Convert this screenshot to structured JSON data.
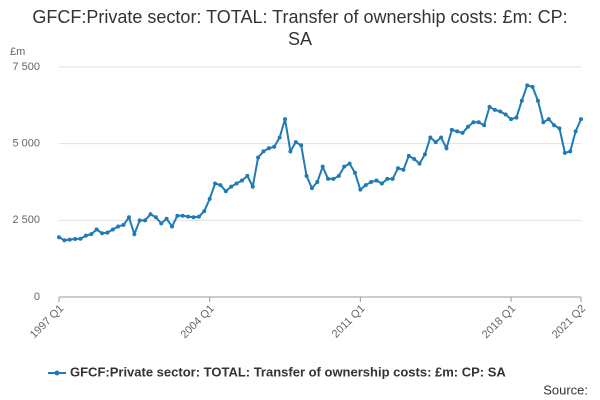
{
  "chart_data": {
    "type": "line",
    "title": "GFCF:Private sector: TOTAL: Transfer of ownership costs: £m: CP: SA",
    "y_label": "£m",
    "source": "Source:",
    "categories": [
      "1997 Q1",
      null,
      null,
      null,
      null,
      null,
      null,
      null,
      null,
      null,
      null,
      null,
      null,
      null,
      null,
      null,
      null,
      null,
      null,
      null,
      null,
      null,
      null,
      null,
      null,
      null,
      null,
      null,
      "2004 Q1",
      null,
      null,
      null,
      null,
      null,
      null,
      null,
      null,
      null,
      null,
      null,
      null,
      null,
      null,
      null,
      null,
      null,
      null,
      null,
      null,
      null,
      null,
      null,
      null,
      null,
      null,
      null,
      "2011 Q1",
      null,
      null,
      null,
      null,
      null,
      null,
      null,
      null,
      null,
      null,
      null,
      null,
      null,
      null,
      null,
      null,
      null,
      null,
      null,
      null,
      null,
      null,
      null,
      null,
      null,
      null,
      null,
      "2018 Q1",
      null,
      null,
      null,
      null,
      null,
      null,
      null,
      null,
      null,
      null,
      null,
      null,
      "2021 Q2"
    ],
    "series": [
      {
        "name": "GFCF:Private sector: TOTAL: Transfer of ownership costs: £m: CP: SA",
        "color": "#1f7ab5",
        "values": [
          1950,
          1850,
          1870,
          1890,
          1900,
          2000,
          2050,
          2200,
          2080,
          2100,
          2200,
          2300,
          2350,
          2600,
          2050,
          2500,
          2500,
          2700,
          2600,
          2400,
          2550,
          2300,
          2650,
          2650,
          2620,
          2600,
          2620,
          2800,
          3200,
          3700,
          3650,
          3450,
          3600,
          3700,
          3800,
          3950,
          3600,
          4550,
          4750,
          4850,
          4900,
          5200,
          5800,
          4750,
          5050,
          4950,
          3950,
          3550,
          3750,
          4250,
          3850,
          3850,
          3950,
          4250,
          4350,
          4050,
          3500,
          3650,
          3750,
          3800,
          3700,
          3850,
          3850,
          4200,
          4150,
          4600,
          4500,
          4350,
          4650,
          5200,
          5050,
          5200,
          4850,
          5450,
          5400,
          5350,
          5550,
          5700,
          5700,
          5600,
          6200,
          6100,
          6050,
          5950,
          5800,
          5850,
          6400,
          6900,
          6850,
          6400,
          5700,
          5800,
          5600,
          5500,
          4700,
          4750,
          5400,
          5800
        ]
      }
    ],
    "ylim": [
      0,
      7500
    ],
    "yticks": [
      0,
      {
        "value": 2500,
        "label": "2 500"
      },
      {
        "value": 5000,
        "label": "5 000"
      },
      {
        "value": 7500,
        "label": "7 500"
      }
    ],
    "grid": true
  }
}
